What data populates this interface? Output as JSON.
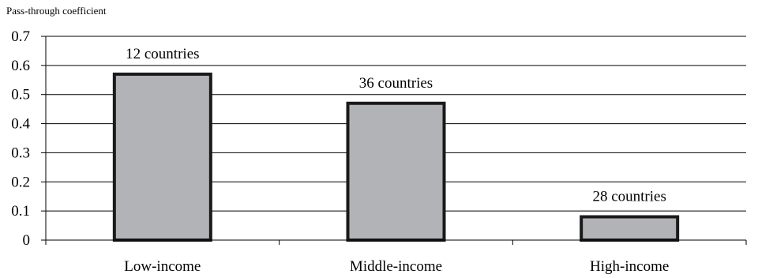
{
  "chart_data": {
    "type": "bar",
    "ylabel": "Pass-through coefficient",
    "xlabel": "",
    "title": "",
    "categories": [
      "Low-income",
      "Middle-income",
      "High-income"
    ],
    "values": [
      0.57,
      0.47,
      0.08
    ],
    "data_labels": [
      "12 countries",
      "36 countries",
      "28 countries"
    ],
    "ylim": [
      0,
      0.7
    ],
    "yticks": [
      0,
      0.1,
      0.2,
      0.3,
      0.4,
      0.5,
      0.6,
      0.7
    ],
    "ytick_labels": [
      "0",
      "0.1",
      "0.2",
      "0.3",
      "0.4",
      "0.5",
      "0.6",
      "0.7"
    ],
    "grid": true,
    "legend": "none",
    "colors": {
      "bar_fill": "#b2b3b6",
      "bar_stroke": "#1a1a1a",
      "grid": "#000000"
    }
  }
}
